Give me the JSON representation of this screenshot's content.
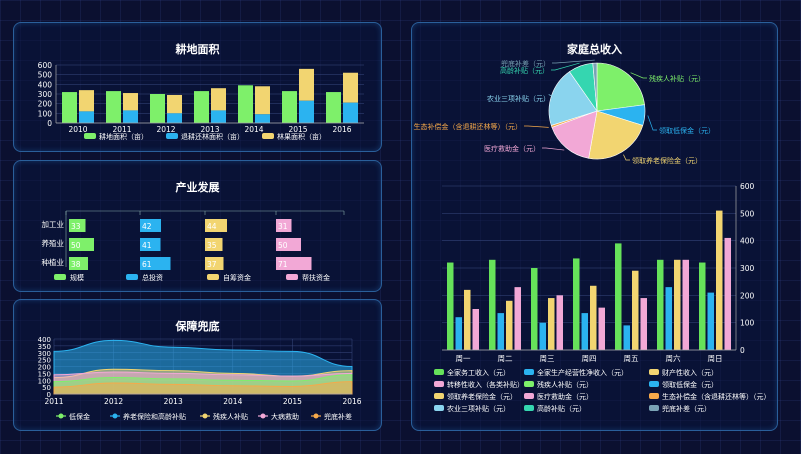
{
  "colors": {
    "green": "#7ef06a",
    "blue": "#2bb3f0",
    "yellow": "#f2d571",
    "pink": "#f2a8d6",
    "orange": "#f6a94a",
    "lightblue": "#8ad4ee",
    "teal": "#35d6b0",
    "gray": "#7aa3b5",
    "lime": "#66e25a"
  },
  "panels": {
    "farmland": {
      "title": "耕地面积"
    },
    "industry": {
      "title": "产业发展"
    },
    "security": {
      "title": "保障兜底"
    },
    "income": {
      "title": "家庭总收入"
    }
  },
  "chart_data": [
    {
      "id": "farmland",
      "type": "bar",
      "title": "耕地面积",
      "categories": [
        "2010",
        "2011",
        "2012",
        "2013",
        "2014",
        "2015",
        "2016"
      ],
      "ylim": [
        0,
        600
      ],
      "yticks": [
        0,
        100,
        200,
        300,
        400,
        500,
        600
      ],
      "legend": [
        "耕地面积（亩）",
        "退耕还林面积（亩）",
        "林果面积（亩）"
      ],
      "series": [
        {
          "name": "耕地面积（亩）",
          "color": "#7ef06a",
          "values": [
            320,
            330,
            300,
            330,
            390,
            330,
            320
          ]
        },
        {
          "name": "退耕还林面积（亩）",
          "color": "#2bb3f0",
          "values": [
            120,
            130,
            100,
            130,
            90,
            230,
            210
          ]
        },
        {
          "name": "林果面积（亩）",
          "color": "#f2d571",
          "values": [
            220,
            180,
            190,
            230,
            290,
            330,
            310
          ]
        }
      ]
    },
    {
      "id": "industry",
      "type": "bar",
      "title": "产业发展",
      "categories": [
        "加工业",
        "养殖业",
        "种植业"
      ],
      "legend": [
        "规模",
        "总投资",
        "自筹资金",
        "帮扶资金"
      ],
      "series": [
        {
          "name": "规模",
          "color": "#7ef06a",
          "values": [
            33,
            50,
            38
          ]
        },
        {
          "name": "总投资",
          "color": "#2bb3f0",
          "values": [
            42,
            41,
            61
          ]
        },
        {
          "name": "自筹资金",
          "color": "#f2d571",
          "values": [
            44,
            35,
            37
          ]
        },
        {
          "name": "帮扶资金",
          "color": "#f2a8d6",
          "values": [
            31,
            50,
            71
          ]
        }
      ]
    },
    {
      "id": "security",
      "type": "area",
      "title": "保障兜底",
      "x": [
        "2011",
        "2012",
        "2013",
        "2014",
        "2015",
        "2016"
      ],
      "ylim": [
        0,
        400
      ],
      "yticks": [
        0,
        50,
        100,
        150,
        200,
        250,
        300,
        350,
        400
      ],
      "legend": [
        "低保金",
        "养老保险和高龄补贴",
        "残疾人补贴",
        "大病救助",
        "兜底补差"
      ],
      "series": [
        {
          "name": "养老保险和高龄补贴",
          "color": "#2bb3f0",
          "values": [
            310,
            390,
            340,
            320,
            310,
            200
          ]
        },
        {
          "name": "残疾人补贴",
          "color": "#f2d571",
          "values": [
            120,
            180,
            170,
            150,
            130,
            170
          ]
        },
        {
          "name": "大病救助",
          "color": "#f2a8d6",
          "values": [
            140,
            160,
            150,
            140,
            130,
            150
          ]
        },
        {
          "name": "低保金",
          "color": "#7ef06a",
          "values": [
            90,
            120,
            110,
            100,
            95,
            140
          ]
        },
        {
          "name": "兜底补差",
          "color": "#f6a94a",
          "values": [
            50,
            80,
            70,
            60,
            55,
            90
          ]
        }
      ]
    },
    {
      "id": "income-pie",
      "type": "pie",
      "title": "家庭总收入",
      "slices": [
        {
          "name": "残疾人补贴（元）",
          "color": "#7ef06a",
          "value": 330
        },
        {
          "name": "领取低保金（元）",
          "color": "#2bb3f0",
          "value": 100
        },
        {
          "name": "领取养老保险金（元）",
          "color": "#f2d571",
          "value": 330
        },
        {
          "name": "医疗救助金（元）",
          "color": "#f2a8d6",
          "value": 240
        },
        {
          "name": "生态补偿金（含退耕还林等）（元）",
          "color": "#f6a94a",
          "value": 10
        },
        {
          "name": "农业三项补贴（元）",
          "color": "#8ad4ee",
          "value": 290
        },
        {
          "name": "高龄补贴（元）",
          "color": "#35d6b0",
          "value": 120
        },
        {
          "name": "兜底补差（元）",
          "color": "#7aa3b5",
          "value": 20
        }
      ]
    },
    {
      "id": "income-week",
      "type": "bar",
      "categories": [
        "周一",
        "周二",
        "周三",
        "周四",
        "周五",
        "周六",
        "周日"
      ],
      "ylim": [
        0,
        600
      ],
      "yticks": [
        0,
        100,
        200,
        300,
        400,
        500,
        600
      ],
      "legend": [
        "全家务工收入（元）",
        "全家生产经营性净收入（元）",
        "财产性收入（元）",
        "转移性收入（各类补贴）",
        "残疾人补贴（元）",
        "领取低保金（元）",
        "领取养老保险金（元）",
        "医疗救助金（元）",
        "生态补偿金（含退耕还林等）（元）",
        "农业三项补贴（元）",
        "高龄补贴（元）",
        "兜底补差（元）"
      ],
      "series": [
        {
          "name": "全家务工收入（元）",
          "color": "#66e25a",
          "values": [
            320,
            330,
            300,
            335,
            390,
            330,
            320
          ]
        },
        {
          "name": "全家生产经营性净收入（元）",
          "color": "#2bb3f0",
          "values": [
            120,
            135,
            100,
            135,
            90,
            230,
            210
          ]
        },
        {
          "name": "财产性收入（元）",
          "color": "#f2d571",
          "values": [
            220,
            180,
            190,
            235,
            290,
            330,
            510
          ]
        },
        {
          "name": "转移性收入（各类补贴）",
          "color": "#f2a8d6",
          "values": [
            150,
            230,
            200,
            155,
            190,
            330,
            410
          ]
        }
      ]
    }
  ]
}
